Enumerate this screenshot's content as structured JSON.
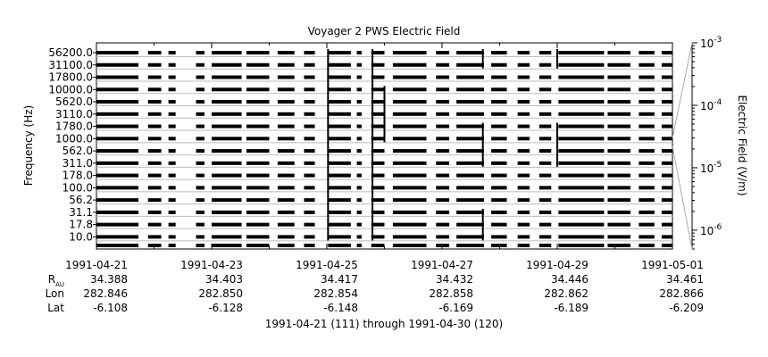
{
  "chart_data": {
    "type": "heatmap",
    "title": "Voyager 2 PWS Electric Field",
    "ylabel": "Frequency (Hz)",
    "colorbar_label": "Electric Field (V/m)",
    "colorbar_ticks": [
      {
        "mantissa": "10",
        "exp": "-3",
        "value": 0.001
      },
      {
        "mantissa": "10",
        "exp": "-4",
        "value": 0.0001
      },
      {
        "mantissa": "10",
        "exp": "-5",
        "value": 1e-05
      },
      {
        "mantissa": "10",
        "exp": "-6",
        "value": 1e-06
      }
    ],
    "colorbar_range": [
      5e-07,
      0.001
    ],
    "colorbar_scale": "log",
    "channels": [
      "56200.0",
      "31100.0",
      "17800.0",
      "10000.0",
      "5620.0",
      "3110.0",
      "1780.0",
      "1000.0",
      "562.0",
      "311.0",
      "178.0",
      "100.0",
      "56.2",
      "31.1",
      "17.8",
      "10.0"
    ],
    "x_range": [
      "1991-04-21",
      "1991-05-01"
    ],
    "x_ticks": [
      {
        "date": "1991-04-21",
        "label": "1991-04-21",
        "rau": "34.388",
        "lon": "282.846",
        "lat": "-6.108"
      },
      {
        "date": "1991-04-23",
        "label": "1991-04-23",
        "rau": "34.403",
        "lon": "282.850",
        "lat": "-6.128"
      },
      {
        "date": "1991-04-25",
        "label": "1991-04-25",
        "rau": "34.417",
        "lon": "282.854",
        "lat": "-6.148"
      },
      {
        "date": "1991-04-27",
        "label": "1991-04-27",
        "rau": "34.432",
        "lon": "282.858",
        "lat": "-6.169"
      },
      {
        "date": "1991-04-29",
        "label": "1991-04-29",
        "rau": "34.446",
        "lon": "282.862",
        "lat": "-6.189"
      },
      {
        "date": "1991-05-01",
        "label": "1991-05-01",
        "rau": "34.461",
        "lon": "282.866",
        "lat": "-6.209"
      }
    ],
    "minor_x_ticks": [
      "1991-04-22",
      "1991-04-24",
      "1991-04-26",
      "1991-04-28",
      "1991-04-30"
    ],
    "data_segments": [
      [
        "1991-04-21T00:00",
        "1991-04-21T17:30"
      ],
      [
        "1991-04-21T21:30",
        "1991-04-22T03:00"
      ],
      [
        "1991-04-22T06:00",
        "1991-04-22T09:00"
      ],
      [
        "1991-04-22T17:30",
        "1991-04-22T21:00"
      ],
      [
        "1991-04-23T00:00",
        "1991-04-23T12:30"
      ],
      [
        "1991-04-23T14:30",
        "1991-04-24T00:00"
      ],
      [
        "1991-04-24T03:30",
        "1991-04-24T10:30"
      ],
      [
        "1991-04-24T14:30",
        "1991-04-24T19:00"
      ],
      [
        "1991-04-25T00:30",
        "1991-04-25T10:00"
      ],
      [
        "1991-04-25T12:30",
        "1991-04-25T14:30"
      ],
      [
        "1991-04-25T18:30",
        "1991-04-26T00:00"
      ],
      [
        "1991-04-26T03:30",
        "1991-04-26T17:30"
      ],
      [
        "1991-04-26T21:30",
        "1991-04-27T03:00"
      ],
      [
        "1991-04-27T06:00",
        "1991-04-27T17:30"
      ],
      [
        "1991-04-27T20:30",
        "1991-04-28T03:00"
      ],
      [
        "1991-04-28T07:30",
        "1991-04-28T12:30"
      ],
      [
        "1991-04-28T16:30",
        "1991-04-28T21:30"
      ],
      [
        "1991-04-29T00:30",
        "1991-04-29T19:30"
      ],
      [
        "1991-04-29T21:00",
        "1991-04-30T06:30"
      ],
      [
        "1991-04-30T10:00",
        "1991-04-30T16:30"
      ],
      [
        "1991-04-30T19:30",
        "1991-05-01T00:00"
      ]
    ],
    "spikes": [
      {
        "time": "1991-04-25T00:30",
        "from": 0,
        "to": 15
      },
      {
        "time": "1991-04-25T19:00",
        "from": 0,
        "to": 15
      },
      {
        "time": "1991-04-26T00:00",
        "from": 3,
        "to": 7
      },
      {
        "time": "1991-04-27T17:00",
        "from": 0,
        "to": 1
      },
      {
        "time": "1991-04-27T17:00",
        "from": 6,
        "to": 9
      },
      {
        "time": "1991-04-27T17:00",
        "from": 13,
        "to": 15
      },
      {
        "time": "1991-04-29T00:00",
        "from": 0,
        "to": 1
      },
      {
        "time": "1991-04-29T00:00",
        "from": 6,
        "to": 9
      }
    ],
    "row_labels": [
      "R",
      "Lon",
      "Lat"
    ],
    "row_label_subscript": "AU",
    "xlabel": "1991-04-21 (111) through 1991-04-30 (120)",
    "grid": true,
    "legend": "none",
    "colors": {
      "data": "#000000",
      "grid": "#bbbbbb",
      "axes": "#000000",
      "fan": "#aaaaaa"
    }
  }
}
